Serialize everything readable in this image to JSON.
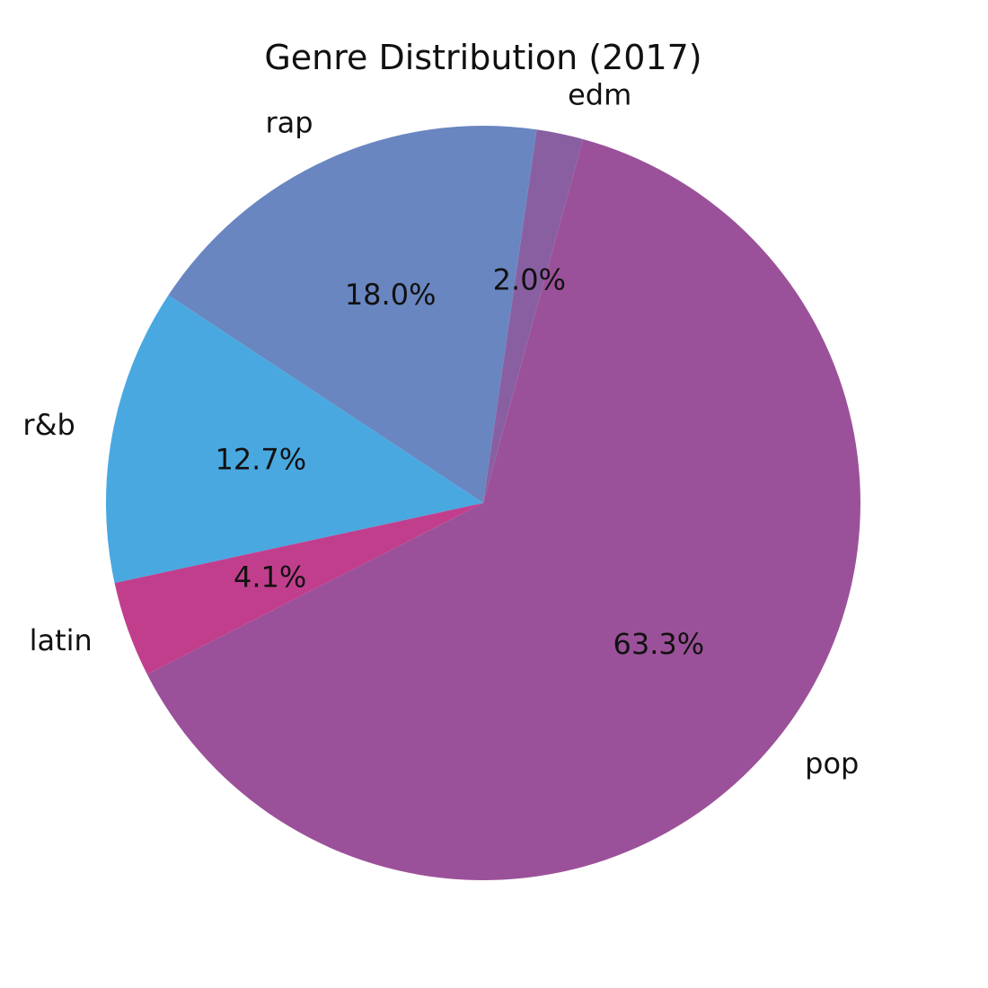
{
  "chart_data": {
    "type": "pie",
    "title": "Genre Distribution (2017)",
    "start_angle_deg": 207,
    "direction": "counterclockwise",
    "slices": [
      {
        "label": "pop",
        "value": 63.3,
        "pct_label": "63.3%",
        "color": "#9b5199"
      },
      {
        "label": "edm",
        "value": 2.0,
        "pct_label": "2.0%",
        "color": "#8a5fa2"
      },
      {
        "label": "rap",
        "value": 18.0,
        "pct_label": "18.0%",
        "color": "#6986c1"
      },
      {
        "label": "r&b",
        "value": 12.7,
        "pct_label": "12.7%",
        "color": "#4aa8e0"
      },
      {
        "label": "latin",
        "value": 4.1,
        "pct_label": "4.1%",
        "color": "#c13e8d"
      }
    ]
  }
}
